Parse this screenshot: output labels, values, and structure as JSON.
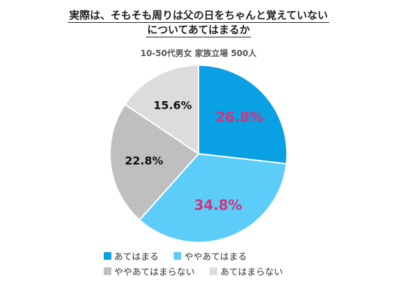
{
  "chart_data": {
    "type": "pie",
    "title_lines": [
      "実際は、そもそも周りは父の日をちゃんと覚えていない",
      "についてあてはまるか"
    ],
    "subtitle": "10-50代男女 家族立場 500人",
    "slices": [
      {
        "label": "あてはまる",
        "value": 26.8,
        "value_label": "26.8%",
        "color": "#0aa0e4",
        "label_color": "#d4337e"
      },
      {
        "label": "ややあてはまる",
        "value": 34.8,
        "value_label": "34.8%",
        "color": "#5ccdf8",
        "label_color": "#d4337e"
      },
      {
        "label": "ややあてはまらない",
        "value": 22.8,
        "value_label": "22.8%",
        "color": "#bfbfbf",
        "label_color": "#111111"
      },
      {
        "label": "あてはまらない",
        "value": 15.6,
        "value_label": "15.6%",
        "color": "#dcdcdc",
        "label_color": "#111111"
      }
    ],
    "start_angle_deg": 0,
    "direction": "clockwise",
    "legend_position": "bottom"
  }
}
